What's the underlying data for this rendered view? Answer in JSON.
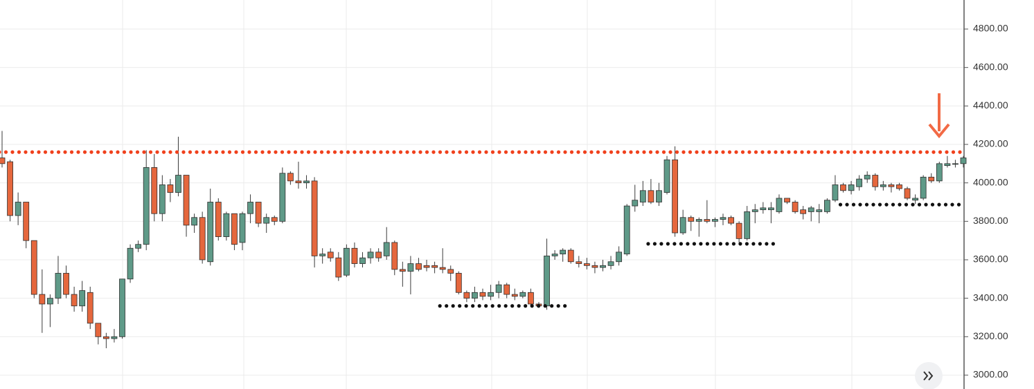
{
  "chart_data": {
    "type": "candlestick",
    "ylim": [
      2928,
      4951
    ],
    "yticks": [
      {
        "value": 3000,
        "label": "3000.00"
      },
      {
        "value": 3200,
        "label": "3200.00"
      },
      {
        "value": 3400,
        "label": "3400.00"
      },
      {
        "value": 3600,
        "label": "3600.00"
      },
      {
        "value": 3800,
        "label": "3800.00"
      },
      {
        "value": 4000,
        "label": "4000.00"
      },
      {
        "value": 4200,
        "label": "4200.00"
      },
      {
        "value": 4400,
        "label": "4400.00"
      },
      {
        "value": 4600,
        "label": "4600.00"
      },
      {
        "value": 4800,
        "label": "4800.00"
      }
    ],
    "grid": true,
    "up_color": "#5f9a88",
    "down_color": "#e5673d",
    "open": [
      4130,
      4110,
      3830,
      3900,
      3700,
      3420,
      3370,
      3400,
      3530,
      3420,
      3360,
      3430,
      3270,
      3200,
      3190,
      3200,
      3500,
      3660,
      3680,
      4080,
      3840,
      3990,
      3950,
      4040,
      3780,
      3820,
      3590,
      3900,
      3720,
      3840,
      3690,
      3840,
      3900,
      3790,
      3820,
      3800,
      4050,
      4010,
      4000,
      4010,
      3620,
      3640,
      3610,
      3520,
      3660,
      3580,
      3610,
      3640,
      3620,
      3690,
      3550,
      3540,
      3580,
      3570,
      3570,
      3560,
      3550,
      3530,
      3430,
      3400,
      3430,
      3410,
      3430,
      3470,
      3420,
      3410,
      3430,
      3370,
      3360,
      3620,
      3630,
      3650,
      3590,
      3580,
      3570,
      3560,
      3570,
      3590,
      3630,
      3880,
      3900,
      3960,
      3900,
      3950,
      4120,
      3740,
      3820,
      3800,
      3810,
      3800,
      3810,
      3820,
      3790,
      3710,
      3850,
      3860,
      3860,
      3850,
      3920,
      3900,
      3860,
      3850,
      3850,
      3850,
      3910,
      3990,
      3960,
      3980,
      4020,
      4040,
      3980,
      3990,
      3990,
      3970,
      3910,
      3920,
      4030,
      4010,
      4090,
      4100,
      4100
    ],
    "high": [
      4270,
      4120,
      3950,
      3900,
      3700,
      3550,
      3420,
      3620,
      3570,
      3460,
      3490,
      3460,
      3270,
      3220,
      3240,
      3500,
      3680,
      3700,
      4170,
      4150,
      4040,
      4020,
      4240,
      4040,
      3840,
      3850,
      3970,
      3920,
      3850,
      3840,
      3850,
      3940,
      3900,
      3840,
      3830,
      4080,
      4060,
      4110,
      4040,
      4030,
      3660,
      3660,
      3640,
      3680,
      3690,
      3640,
      3660,
      3660,
      3770,
      3700,
      3590,
      3620,
      3610,
      3600,
      3590,
      3660,
      3570,
      3540,
      3440,
      3460,
      3450,
      3470,
      3490,
      3480,
      3450,
      3440,
      3450,
      3380,
      3710,
      3650,
      3660,
      3660,
      3620,
      3610,
      3590,
      3600,
      3620,
      3670,
      3890,
      3990,
      4010,
      4020,
      4000,
      4140,
      4190,
      3860,
      3830,
      3820,
      3910,
      3820,
      3840,
      3830,
      3800,
      3880,
      3890,
      3900,
      3900,
      3940,
      3920,
      3910,
      3880,
      3880,
      3890,
      3920,
      4040,
      4000,
      4010,
      4040,
      4060,
      4050,
      4010,
      4000,
      4000,
      3980,
      3940,
      4040,
      4050,
      4110,
      4140,
      4120,
      4140
    ],
    "low": [
      4080,
      3800,
      3780,
      3660,
      3400,
      3220,
      3250,
      3370,
      3400,
      3330,
      3330,
      3240,
      3160,
      3140,
      3170,
      3190,
      3480,
      3640,
      3650,
      3800,
      3800,
      3900,
      3930,
      3720,
      3740,
      3580,
      3570,
      3700,
      3700,
      3650,
      3650,
      3790,
      3770,
      3740,
      3780,
      3790,
      3990,
      3970,
      3970,
      3560,
      3580,
      3590,
      3490,
      3510,
      3560,
      3560,
      3580,
      3590,
      3600,
      3520,
      3460,
      3420,
      3540,
      3540,
      3530,
      3530,
      3490,
      3420,
      3380,
      3380,
      3390,
      3390,
      3400,
      3400,
      3390,
      3400,
      3360,
      3350,
      3340,
      3600,
      3590,
      3580,
      3560,
      3550,
      3530,
      3540,
      3550,
      3570,
      3620,
      3850,
      3880,
      3890,
      3880,
      3940,
      3720,
      3730,
      3750,
      3720,
      3790,
      3770,
      3780,
      3780,
      3690,
      3700,
      3790,
      3840,
      3790,
      3840,
      3890,
      3840,
      3810,
      3800,
      3790,
      3840,
      3900,
      3950,
      3940,
      3960,
      4000,
      3960,
      3960,
      3950,
      3960,
      3910,
      3890,
      3910,
      4000,
      4000,
      4080,
      4080,
      4080
    ],
    "close": [
      4100,
      3830,
      3900,
      3700,
      3420,
      3370,
      3400,
      3530,
      3420,
      3360,
      3440,
      3270,
      3200,
      3190,
      3200,
      3500,
      3660,
      3680,
      4080,
      3840,
      3990,
      3950,
      4040,
      3780,
      3820,
      3600,
      3900,
      3720,
      3840,
      3680,
      3840,
      3900,
      3790,
      3820,
      3800,
      4050,
      4010,
      4000,
      4010,
      3620,
      3630,
      3610,
      3510,
      3660,
      3580,
      3610,
      3640,
      3610,
      3690,
      3550,
      3540,
      3580,
      3550,
      3560,
      3560,
      3550,
      3530,
      3430,
      3400,
      3430,
      3410,
      3430,
      3470,
      3420,
      3410,
      3430,
      3370,
      3360,
      3620,
      3630,
      3650,
      3590,
      3580,
      3570,
      3560,
      3570,
      3590,
      3640,
      3880,
      3910,
      3960,
      3900,
      3960,
      4120,
      3740,
      3820,
      3800,
      3810,
      3800,
      3810,
      3820,
      3790,
      3710,
      3850,
      3860,
      3870,
      3870,
      3920,
      3900,
      3850,
      3840,
      3870,
      3860,
      3910,
      3990,
      3960,
      3990,
      4020,
      4040,
      3980,
      3990,
      3980,
      3970,
      3920,
      3920,
      4030,
      4010,
      4100,
      4100,
      4100,
      4130
    ],
    "levels": [
      {
        "value": 4160,
        "color": "#f0401c",
        "start": 0,
        "end": 120
      },
      {
        "value": 3360,
        "color": "#111111",
        "start": 55,
        "end": 70
      },
      {
        "value": 3683,
        "color": "#111111",
        "start": 81,
        "end": 96
      },
      {
        "value": 3887,
        "color": "#111111",
        "start": 105,
        "end": 120
      }
    ]
  }
}
